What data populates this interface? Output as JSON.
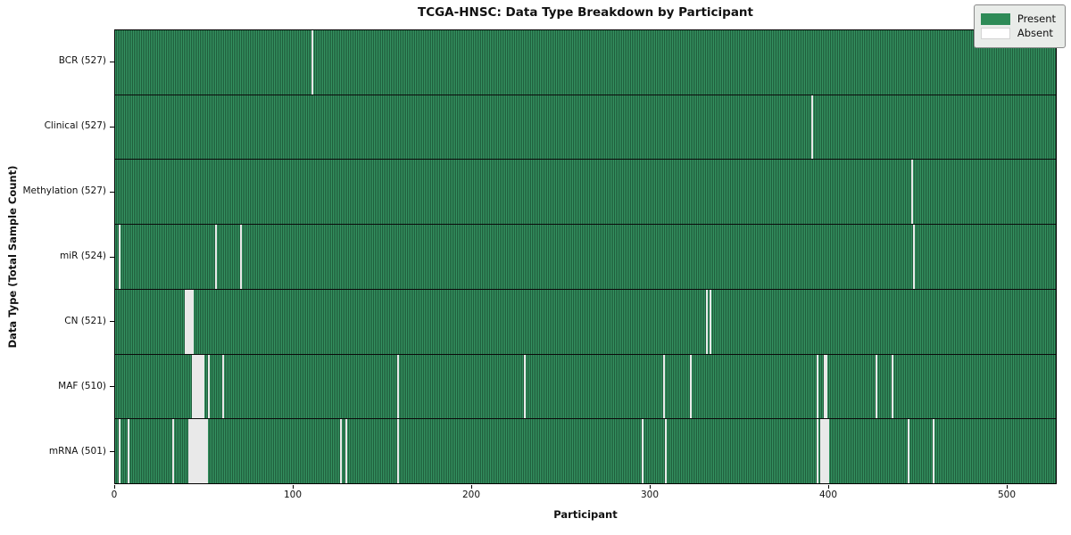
{
  "chart_data": {
    "type": "heatmap",
    "title": "TCGA-HNSC: Data Type Breakdown by Participant",
    "xlabel": "Participant",
    "ylabel": "Data Type (Total Sample Count)",
    "x_ticks": [
      0,
      100,
      200,
      300,
      400,
      500
    ],
    "x_range": [
      0,
      528
    ],
    "n_participants": 528,
    "legend": {
      "present": "Present",
      "absent": "Absent"
    },
    "colors": {
      "present": "#2e8b57",
      "present_stripe_light": "#359462",
      "present_stripe_dark": "#1f5c3b",
      "absent": "#ffffff",
      "row_separator": "#0b0b0b",
      "legend_bg": "#e9ece9"
    },
    "rows": [
      {
        "label": "BCR (527)",
        "name": "bcr",
        "total": 527,
        "absent_participants": [
          110
        ]
      },
      {
        "label": "Clinical (527)",
        "name": "clinical",
        "total": 527,
        "absent_participants": [
          390
        ]
      },
      {
        "label": "Methylation (527)",
        "name": "methylation",
        "total": 527,
        "absent_participants": [
          446
        ]
      },
      {
        "label": "miR (524)",
        "name": "mir",
        "total": 524,
        "absent_participants": [
          2,
          56,
          70,
          447
        ]
      },
      {
        "label": "CN (521)",
        "name": "cn",
        "total": 521,
        "absent_participants": [
          39,
          40,
          41,
          42,
          43,
          331,
          333
        ]
      },
      {
        "label": "MAF (510)",
        "name": "maf",
        "total": 510,
        "absent_participants": [
          43,
          44,
          45,
          46,
          47,
          48,
          49,
          52,
          60,
          158,
          229,
          307,
          322,
          393,
          397,
          398,
          426,
          435
        ]
      },
      {
        "label": "mRNA (501)",
        "name": "mrna",
        "total": 501,
        "absent_participants": [
          2,
          7,
          32,
          41,
          42,
          43,
          44,
          45,
          46,
          47,
          48,
          49,
          50,
          51,
          126,
          129,
          158,
          295,
          308,
          393,
          395,
          396,
          397,
          398,
          399,
          444,
          458
        ]
      }
    ]
  }
}
